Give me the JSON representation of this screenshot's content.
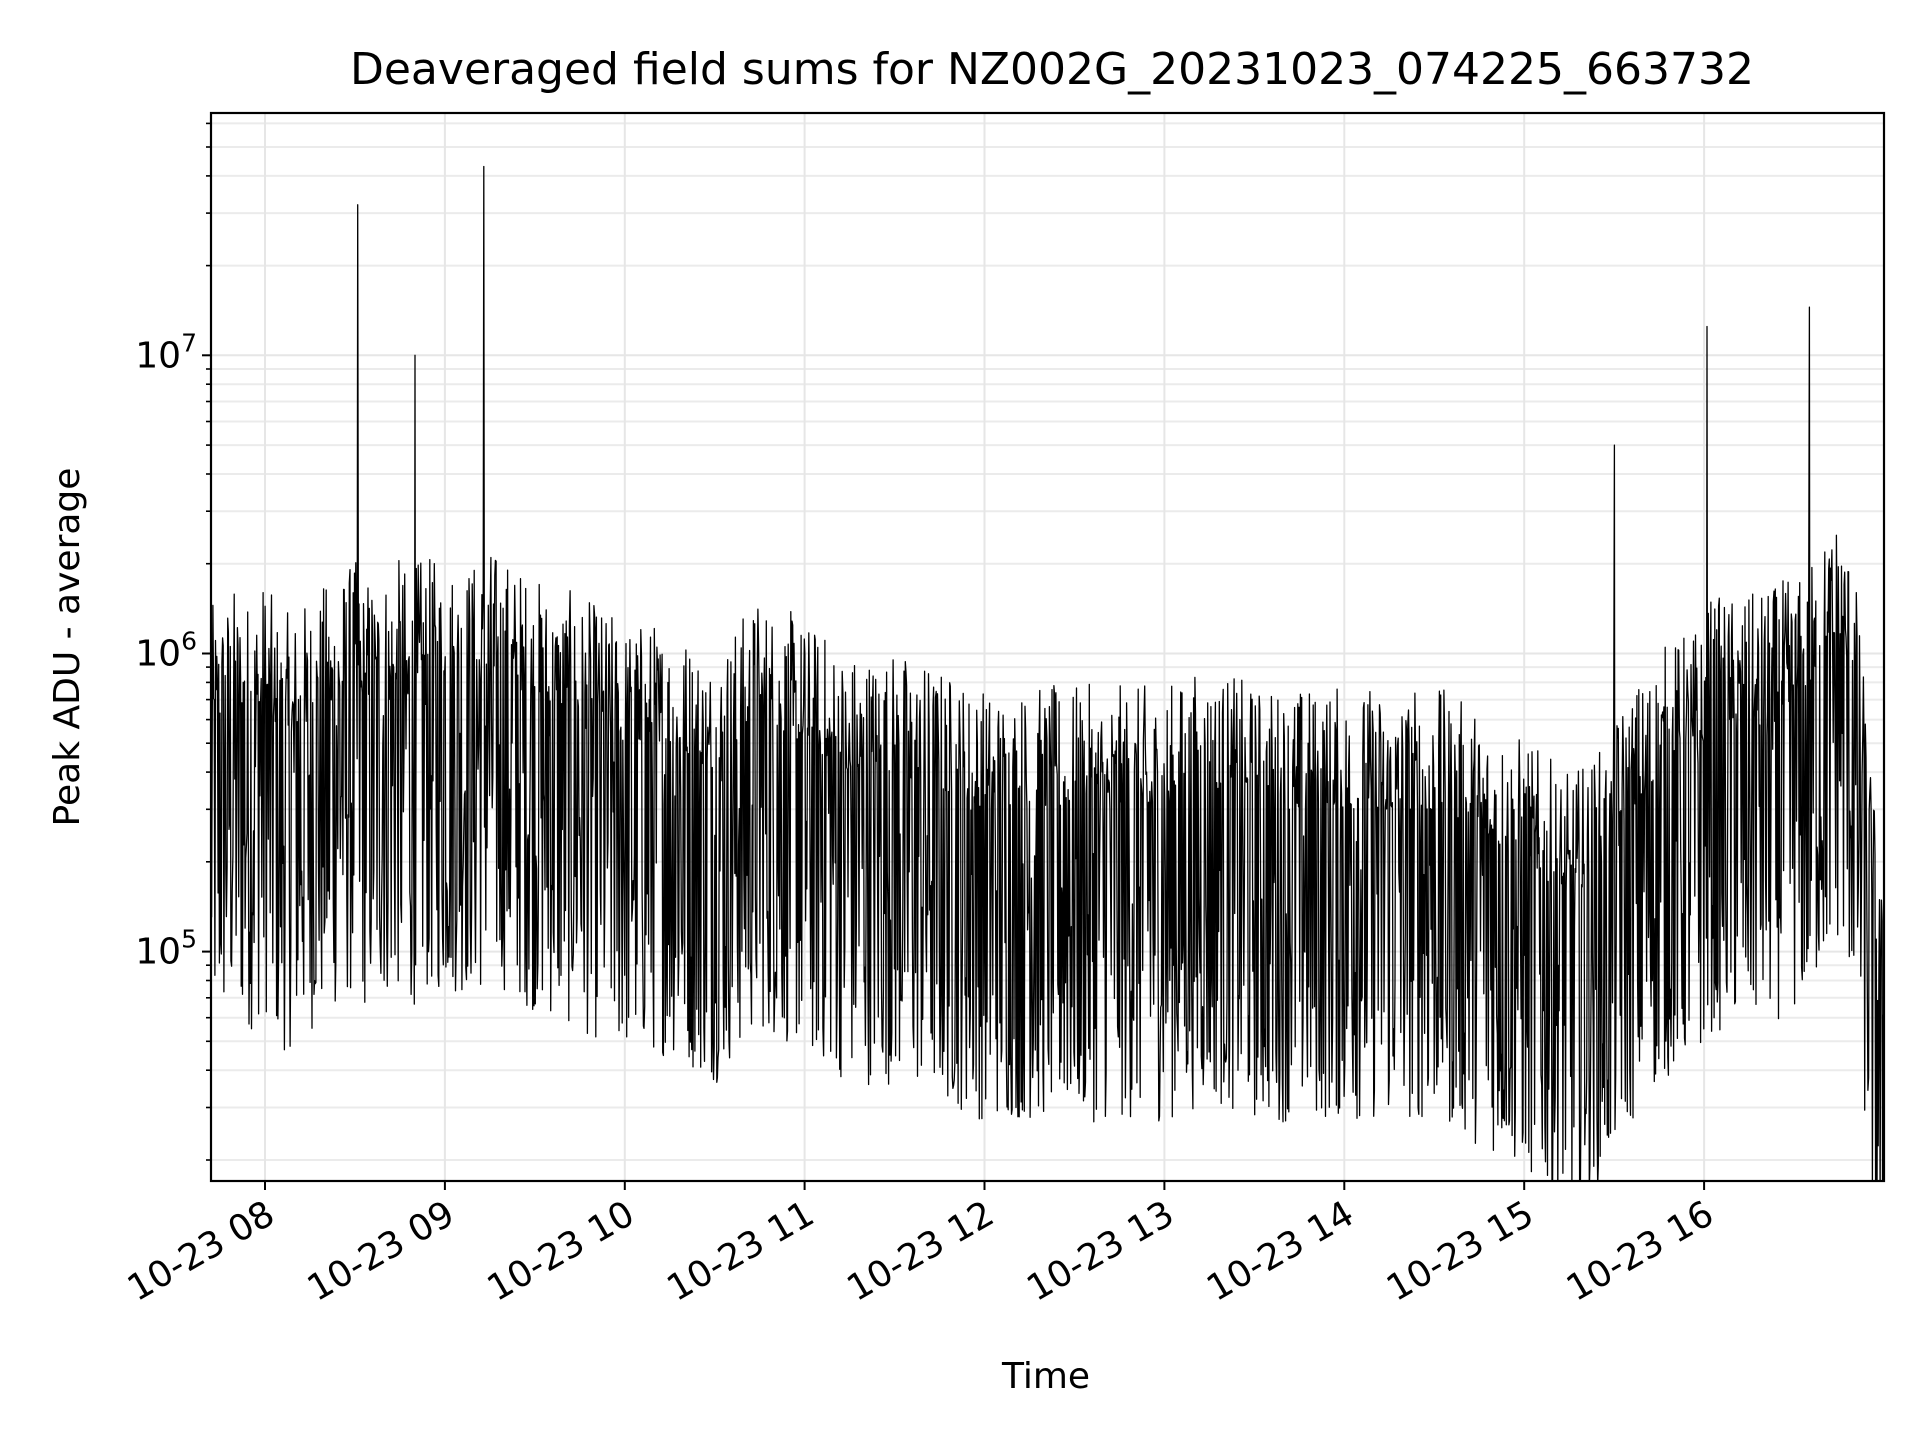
{
  "chart_data": {
    "type": "line",
    "title": "Deaveraged field sums for NZ002G_20231023_074225_663732",
    "xlabel": "Time",
    "ylabel": "Peak ADU - average",
    "y_scale": "log",
    "xlim": [
      "2023-10-23 07:42",
      "2023-10-23 17:00"
    ],
    "ylim": [
      17000,
      65000000
    ],
    "grid": true,
    "line_color": "#000000",
    "x_ticks": [
      {
        "value": "2023-10-23 08:00",
        "label": "10-23 08"
      },
      {
        "value": "2023-10-23 09:00",
        "label": "10-23 09"
      },
      {
        "value": "2023-10-23 10:00",
        "label": "10-23 10"
      },
      {
        "value": "2023-10-23 11:00",
        "label": "10-23 11"
      },
      {
        "value": "2023-10-23 12:00",
        "label": "10-23 12"
      },
      {
        "value": "2023-10-23 13:00",
        "label": "10-23 13"
      },
      {
        "value": "2023-10-23 14:00",
        "label": "10-23 14"
      },
      {
        "value": "2023-10-23 15:00",
        "label": "10-23 15"
      },
      {
        "value": "2023-10-23 16:00",
        "label": "10-23 16"
      }
    ],
    "y_ticks": [
      {
        "value": 100000,
        "base": "10",
        "exp": "5"
      },
      {
        "value": 1000000,
        "base": "10",
        "exp": "6"
      },
      {
        "value": 10000000,
        "base": "10",
        "exp": "7"
      }
    ],
    "series": [
      {
        "x": [
          "2023-10-23 07:42",
          "2023-10-23 07:50",
          "2023-10-23 07:55",
          "2023-10-23 08:00",
          "2023-10-23 08:05",
          "2023-10-23 08:15",
          "2023-10-23 08:30",
          "2023-10-23 08:31",
          "2023-10-23 08:32",
          "2023-10-23 08:45",
          "2023-10-23 08:49",
          "2023-10-23 08:50",
          "2023-10-23 08:51",
          "2023-10-23 09:00",
          "2023-10-23 09:12",
          "2023-10-23 09:13",
          "2023-10-23 09:14",
          "2023-10-23 09:30",
          "2023-10-23 09:45",
          "2023-10-23 10:00",
          "2023-10-23 10:15",
          "2023-10-23 10:30",
          "2023-10-23 10:44",
          "2023-10-23 10:45",
          "2023-10-23 10:46",
          "2023-10-23 11:00",
          "2023-10-23 11:15",
          "2023-10-23 11:30",
          "2023-10-23 11:45",
          "2023-10-23 12:00",
          "2023-10-23 12:15",
          "2023-10-23 12:30",
          "2023-10-23 12:45",
          "2023-10-23 13:00",
          "2023-10-23 13:15",
          "2023-10-23 13:30",
          "2023-10-23 13:45",
          "2023-10-23 14:00",
          "2023-10-23 14:15",
          "2023-10-23 14:30",
          "2023-10-23 14:45",
          "2023-10-23 15:00",
          "2023-10-23 15:15",
          "2023-10-23 15:29",
          "2023-10-23 15:30",
          "2023-10-23 15:31",
          "2023-10-23 15:45",
          "2023-10-23 16:00",
          "2023-10-23 16:01",
          "2023-10-23 16:02",
          "2023-10-23 16:15",
          "2023-10-23 16:30",
          "2023-10-23 16:34",
          "2023-10-23 16:35",
          "2023-10-23 16:36",
          "2023-10-23 16:45",
          "2023-10-23 16:50",
          "2023-10-23 16:55",
          "2023-10-23 17:00"
        ],
        "values": [
          550000,
          650000,
          600000,
          700000,
          500000,
          600000,
          800000,
          32000000,
          700000,
          800000,
          700000,
          10000000,
          800000,
          800000,
          800000,
          43000000,
          900000,
          700000,
          600000,
          500000,
          500000,
          400000,
          600000,
          600000,
          600000,
          500000,
          400000,
          400000,
          350000,
          300000,
          300000,
          300000,
          300000,
          300000,
          350000,
          300000,
          300000,
          300000,
          300000,
          300000,
          250000,
          200000,
          150000,
          200000,
          5000000,
          250000,
          400000,
          500000,
          12500000,
          600000,
          600000,
          700000,
          700000,
          14500000,
          800000,
          1200000,
          800000,
          200000,
          50000
        ]
      }
    ]
  }
}
